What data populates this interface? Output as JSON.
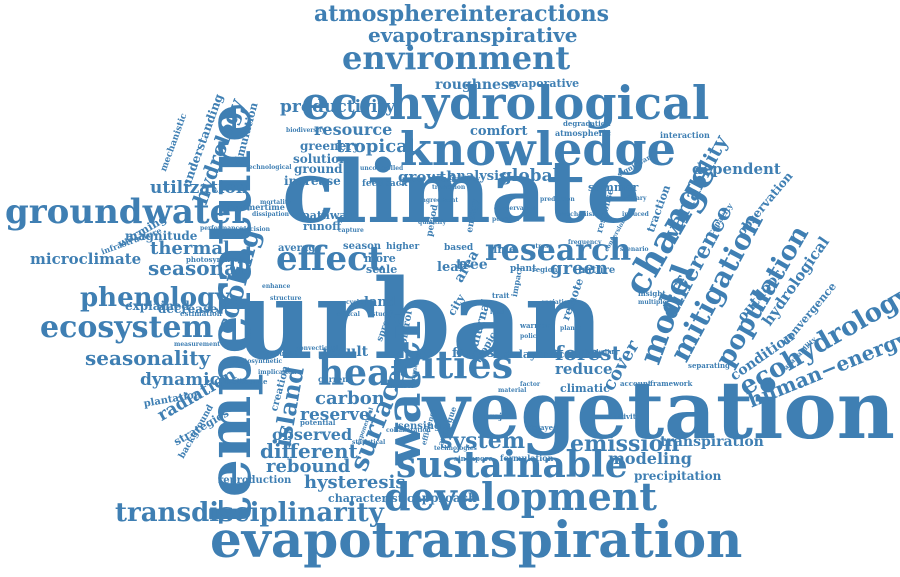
{
  "cloud": {
    "color": "#3f7fb3",
    "words": [
      {
        "id": "climate",
        "text": "climate"
      },
      {
        "id": "urban",
        "text": "urban"
      },
      {
        "id": "vegetation",
        "text": "vegetation"
      },
      {
        "id": "evapotranspiration",
        "text": "evapotranspiration"
      },
      {
        "id": "temperature",
        "text": "temperature"
      },
      {
        "id": "ecohydrological",
        "text": "ecohydrological"
      },
      {
        "id": "knowledge",
        "text": "knowledge"
      },
      {
        "id": "development",
        "text": "development"
      },
      {
        "id": "sustainable",
        "text": "sustainable"
      },
      {
        "id": "groundwater",
        "text": "groundwater"
      },
      {
        "id": "cities",
        "text": "cities"
      },
      {
        "id": "water",
        "text": "water"
      },
      {
        "id": "environment",
        "text": "environment"
      },
      {
        "id": "transdisciplinarity",
        "text": "transdisciplinarity"
      },
      {
        "id": "ecosystem",
        "text": "ecosystem"
      },
      {
        "id": "atmosphereinteractions",
        "text": "atmosphereinteractions"
      },
      {
        "id": "evapotranspirative",
        "text": "evapotranspirative"
      },
      {
        "id": "heat",
        "text": "heat"
      },
      {
        "id": "effect",
        "text": "effect"
      },
      {
        "id": "research",
        "text": "research"
      },
      {
        "id": "change",
        "text": "change"
      },
      {
        "id": "model",
        "text": "model"
      },
      {
        "id": "mitigation",
        "text": "mitigation"
      },
      {
        "id": "population",
        "text": "population"
      },
      {
        "id": "difference",
        "text": "difference"
      },
      {
        "id": "variability",
        "text": "variability"
      },
      {
        "id": "ecohydrology",
        "text": "ecohydrology"
      },
      {
        "id": "human-energy",
        "text": "human−energy"
      },
      {
        "id": "phenology",
        "text": "phenology"
      },
      {
        "id": "cooling",
        "text": "cooling"
      },
      {
        "id": "surface",
        "text": "surface"
      },
      {
        "id": "island",
        "text": "island"
      },
      {
        "id": "emission",
        "text": "emission"
      },
      {
        "id": "seasonality",
        "text": "seasonality"
      },
      {
        "id": "hydrology",
        "text": "hydrology"
      },
      {
        "id": "resource",
        "text": "resource"
      },
      {
        "id": "tropical",
        "text": "tropical"
      },
      {
        "id": "productivity",
        "text": "productivity"
      },
      {
        "id": "roughness",
        "text": "roughness"
      },
      {
        "id": "evaporative",
        "text": "evaporative"
      },
      {
        "id": "comfort",
        "text": "comfort"
      },
      {
        "id": "growth",
        "text": "growth"
      },
      {
        "id": "global",
        "text": "global"
      },
      {
        "id": "dependent",
        "text": "dependent"
      },
      {
        "id": "utilization",
        "text": "utilization"
      },
      {
        "id": "thermal",
        "text": "thermal"
      },
      {
        "id": "seasonal",
        "text": "seasonal"
      },
      {
        "id": "microclimate",
        "text": "microclimate"
      },
      {
        "id": "forest",
        "text": "forest"
      },
      {
        "id": "green",
        "text": "green"
      },
      {
        "id": "system",
        "text": "system"
      },
      {
        "id": "different",
        "text": "different"
      },
      {
        "id": "rebound",
        "text": "rebound"
      },
      {
        "id": "hysteresis",
        "text": "hysteresis"
      },
      {
        "id": "modeling",
        "text": "modeling"
      },
      {
        "id": "transpiration",
        "text": "transpiration"
      },
      {
        "id": "dynamic",
        "text": "dynamic"
      },
      {
        "id": "radiation",
        "text": "radiation"
      },
      {
        "id": "carbon",
        "text": "carbon"
      },
      {
        "id": "reserve",
        "text": "reserve"
      },
      {
        "id": "observed",
        "text": "observed"
      },
      {
        "id": "result",
        "text": "result"
      },
      {
        "id": "reduce",
        "text": "reduce"
      },
      {
        "id": "cover",
        "text": "cover"
      },
      {
        "id": "fluxes",
        "text": "fluxes"
      },
      {
        "id": "outdoor",
        "text": "outdoor"
      },
      {
        "id": "hydrological",
        "text": "hydrological"
      },
      {
        "id": "condition",
        "text": "condition"
      },
      {
        "id": "greenery",
        "text": "greenery"
      },
      {
        "id": "solution",
        "text": "solution"
      },
      {
        "id": "ground",
        "text": "ground"
      },
      {
        "id": "increase",
        "text": "increase"
      },
      {
        "id": "analysis",
        "text": "analysis"
      },
      {
        "id": "land",
        "text": "land"
      },
      {
        "id": "leaf",
        "text": "leaf"
      },
      {
        "id": "tree",
        "text": "tree"
      },
      {
        "id": "season",
        "text": "season"
      },
      {
        "id": "more",
        "text": "more"
      },
      {
        "id": "scale",
        "text": "scale"
      },
      {
        "id": "magnitude",
        "text": "magnitude"
      },
      {
        "id": "explained",
        "text": "explained"
      },
      {
        "id": "decrease",
        "text": "decrease"
      },
      {
        "id": "pathway",
        "text": "pathway"
      },
      {
        "id": "runoff",
        "text": "runoff"
      },
      {
        "id": "average",
        "text": "average"
      },
      {
        "id": "warming",
        "text": "warming"
      },
      {
        "id": "simulation",
        "text": "simulation"
      },
      {
        "id": "understanding",
        "text": "understanding"
      },
      {
        "id": "summer",
        "text": "summer"
      },
      {
        "id": "climatic",
        "text": "climatic"
      },
      {
        "id": "precipitation",
        "text": "precipitation"
      },
      {
        "id": "characteristic",
        "text": "characteristic"
      },
      {
        "id": "approach",
        "text": "approach"
      },
      {
        "id": "reproduction",
        "text": "reproduction"
      },
      {
        "id": "strategies",
        "text": "strategies"
      },
      {
        "id": "plantation",
        "text": "plantation"
      },
      {
        "id": "observation",
        "text": "observation"
      },
      {
        "id": "convergence",
        "text": "convergence"
      },
      {
        "id": "delay",
        "text": "delay"
      },
      {
        "id": "service",
        "text": "service"
      },
      {
        "id": "sensing",
        "text": "sensing"
      },
      {
        "id": "time",
        "text": "time"
      },
      {
        "id": "based",
        "text": "based"
      },
      {
        "id": "higher",
        "text": "higher"
      },
      {
        "id": "plant",
        "text": "plant"
      },
      {
        "id": "nature",
        "text": "nature"
      },
      {
        "id": "creation",
        "text": "creation"
      },
      {
        "id": "feedback",
        "text": "feedback"
      },
      {
        "id": "summertime",
        "text": "summertime"
      },
      {
        "id": "photosynthesis",
        "text": "photosynthesis"
      },
      {
        "id": "infrastructure",
        "text": "infrastructure"
      },
      {
        "id": "mechanistic",
        "text": "mechanistic"
      },
      {
        "id": "background",
        "text": "background"
      },
      {
        "id": "melbourne",
        "text": "melbourne"
      },
      {
        "id": "drought",
        "text": "drought"
      },
      {
        "id": "current",
        "text": "current"
      },
      {
        "id": "potential",
        "text": "potential"
      },
      {
        "id": "singapore",
        "text": "singapore"
      },
      {
        "id": "formulation",
        "text": "formulation"
      },
      {
        "id": "project",
        "text": "project"
      },
      {
        "id": "sensitivity",
        "text": "sensitivity"
      },
      {
        "id": "account",
        "text": "account"
      },
      {
        "id": "framework",
        "text": "framework"
      },
      {
        "id": "separating",
        "text": "separating"
      },
      {
        "id": "availability",
        "text": "availability"
      },
      {
        "id": "capacity",
        "text": "capacity"
      },
      {
        "id": "interaction",
        "text": "interaction"
      },
      {
        "id": "atmospheric",
        "text": "atmospheric"
      },
      {
        "id": "degradation",
        "text": "degradation"
      },
      {
        "id": "traction",
        "text": "traction"
      },
      {
        "id": "response",
        "text": "response"
      },
      {
        "id": "energy",
        "text": "energy"
      },
      {
        "id": "period",
        "text": "period"
      },
      {
        "id": "remote",
        "text": "remote"
      },
      {
        "id": "insight",
        "text": "insight"
      },
      {
        "id": "region",
        "text": "region"
      },
      {
        "id": "diurnal",
        "text": "diurnal"
      },
      {
        "id": "area",
        "text": "area"
      },
      {
        "id": "tropic",
        "text": "tropic"
      },
      {
        "id": "control",
        "text": "control"
      },
      {
        "id": "spread",
        "text": "spread"
      },
      {
        "id": "city",
        "text": "city"
      },
      {
        "id": "impact",
        "text": "impact"
      },
      {
        "id": "significant",
        "text": "significant"
      },
      {
        "id": "technological",
        "text": "technological"
      },
      {
        "id": "vulnerability",
        "text": "vulnerability"
      },
      {
        "id": "warmer",
        "text": "warmer"
      },
      {
        "id": "delayed",
        "text": "delayed"
      },
      {
        "id": "multiple",
        "text": "multiple"
      },
      {
        "id": "performance",
        "text": "performance"
      },
      {
        "id": "estimation",
        "text": "estimation"
      },
      {
        "id": "implication",
        "text": "implication"
      },
      {
        "id": "measurement",
        "text": "measurement"
      },
      {
        "id": "photosynthetic",
        "text": "photosynthetic"
      },
      {
        "id": "collaboration",
        "text": "collaboration"
      },
      {
        "id": "efficiency",
        "text": "efficiency"
      },
      {
        "id": "analogue",
        "text": "analogue"
      },
      {
        "id": "technologies",
        "text": "technologies"
      },
      {
        "id": "conversion",
        "text": "conversion"
      },
      {
        "id": "induced",
        "text": "induced"
      },
      {
        "id": "primary",
        "text": "primary"
      },
      {
        "id": "scenario",
        "text": "scenario"
      },
      {
        "id": "number",
        "text": "number"
      },
      {
        "id": "critical",
        "text": "critical"
      },
      {
        "id": "possible",
        "text": "possible"
      },
      {
        "id": "mechanism",
        "text": "mechanism"
      },
      {
        "id": "uncontrolled",
        "text": "uncontrolled"
      },
      {
        "id": "decision",
        "text": "decision"
      },
      {
        "id": "mortality",
        "text": "mortality"
      },
      {
        "id": "biodiversity",
        "text": "biodiversity"
      },
      {
        "id": "enhance",
        "text": "enhance"
      },
      {
        "id": "dissipation",
        "text": "dissipation"
      },
      {
        "id": "capture",
        "text": "capture"
      },
      {
        "id": "convectional",
        "text": "convectional"
      },
      {
        "id": "quantify",
        "text": "quantify"
      },
      {
        "id": "policy",
        "text": "policy"
      },
      {
        "id": "variation",
        "text": "variation"
      },
      {
        "id": "statistical",
        "text": "statistical"
      },
      {
        "id": "including",
        "text": "including"
      },
      {
        "id": "planet",
        "text": "planet"
      },
      {
        "id": "lead",
        "text": "lead"
      },
      {
        "id": "trait",
        "text": "trait"
      },
      {
        "id": "boundary",
        "text": "boundary"
      },
      {
        "id": "material",
        "text": "material"
      },
      {
        "id": "exponential",
        "text": "exponential"
      },
      {
        "id": "conservation",
        "text": "conservation"
      },
      {
        "id": "prediction",
        "text": "prediction"
      },
      {
        "id": "structure",
        "text": "structure"
      },
      {
        "id": "cycle",
        "text": "cycle"
      },
      {
        "id": "study",
        "text": "study"
      },
      {
        "id": "agreement",
        "text": "agreement"
      },
      {
        "id": "transition",
        "text": "transition"
      },
      {
        "id": "stress",
        "text": "stress"
      },
      {
        "id": "frequency",
        "text": "frequency"
      },
      {
        "id": "factor",
        "text": "factor"
      }
    ]
  }
}
